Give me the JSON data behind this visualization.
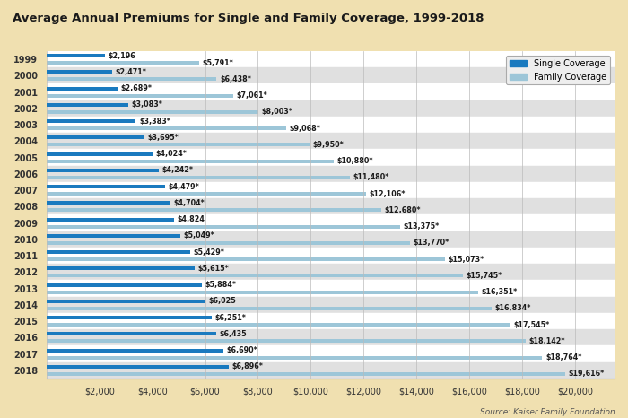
{
  "title": "Average Annual Premiums for Single and Family Coverage, 1999-2018",
  "years": [
    1999,
    2000,
    2001,
    2002,
    2003,
    2004,
    2005,
    2006,
    2007,
    2008,
    2009,
    2010,
    2011,
    2012,
    2013,
    2014,
    2015,
    2016,
    2017,
    2018
  ],
  "single": [
    2196,
    2471,
    2689,
    3083,
    3383,
    3695,
    4024,
    4242,
    4479,
    4704,
    4824,
    5049,
    5429,
    5615,
    5884,
    6025,
    6251,
    6435,
    6690,
    6896
  ],
  "family": [
    5791,
    6438,
    7061,
    8003,
    9068,
    9950,
    10880,
    11480,
    12106,
    12680,
    13375,
    13770,
    15073,
    15745,
    16351,
    16834,
    17545,
    18142,
    18764,
    19616
  ],
  "single_labels": [
    "$2,196",
    "$2,471*",
    "$2,689*",
    "$3,083*",
    "$3,383*",
    "$3,695*",
    "$4,024*",
    "$4,242*",
    "$4,479*",
    "$4,704*",
    "$4,824",
    "$5,049*",
    "$5,429*",
    "$5,615*",
    "$5,884*",
    "$6,025",
    "$6,251*",
    "$6,435",
    "$6,690*",
    "$6,896*"
  ],
  "family_labels": [
    "$5,791*",
    "$6,438*",
    "$7,061*",
    "$8,003*",
    "$9,068*",
    "$9,950*",
    "$10,880*",
    "$11,480*",
    "$12,106*",
    "$12,680*",
    "$13,375*",
    "$13,770*",
    "$15,073*",
    "$15,745*",
    "$16,351*",
    "$16,834*",
    "$17,545*",
    "$18,142*",
    "$18,764*",
    "$19,616*"
  ],
  "single_color": "#1a7abf",
  "family_color": "#9dc6d8",
  "bg_color": "#f0e0b0",
  "plot_bg_white": "#ffffff",
  "plot_bg_gray": "#e0e0e0",
  "source_text": "Source: Kaiser Family Foundation",
  "xtick_labels": [
    "",
    "$2,000",
    "$4,000",
    "$6,000",
    "$8,000",
    "$10,000",
    "$12,000",
    "$14,000",
    "$16,000",
    "$18,000",
    "$20,000"
  ]
}
